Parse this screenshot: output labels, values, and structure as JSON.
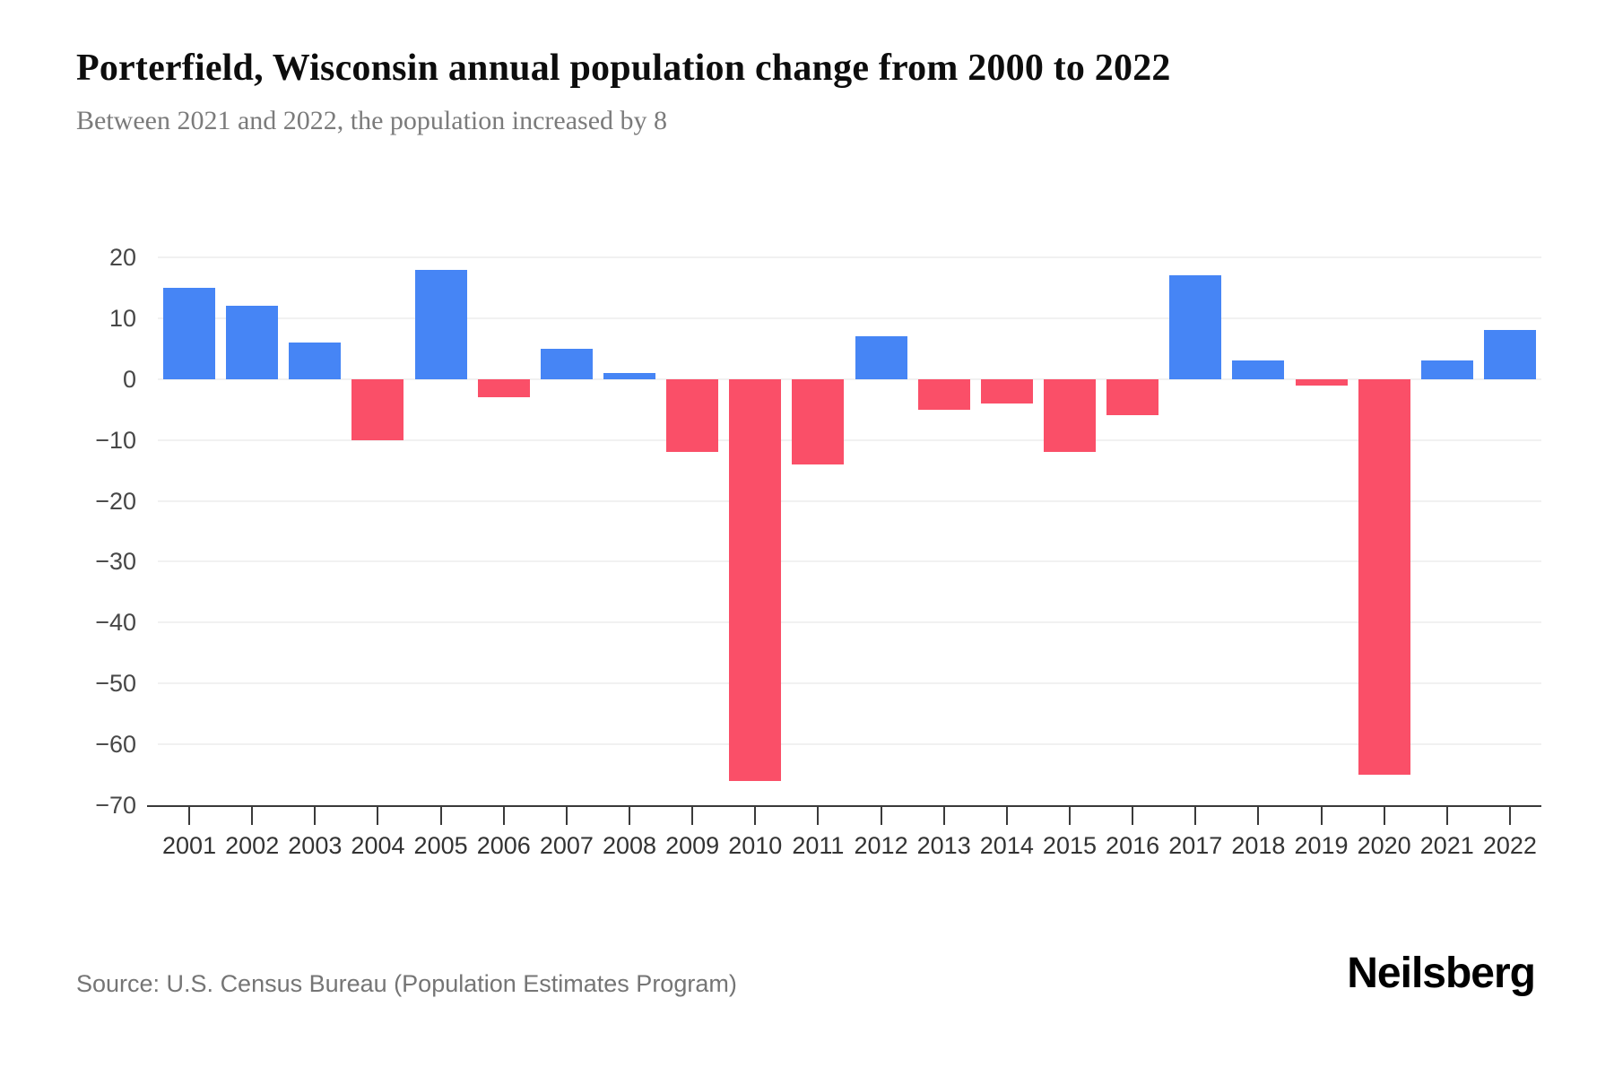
{
  "header": {
    "title": "Porterfield, Wisconsin annual population change from 2000 to 2022",
    "subtitle": "Between 2021 and 2022, the population increased by 8"
  },
  "footer": {
    "source": "Source: U.S. Census Bureau (Population Estimates Program)",
    "brand": "Neilsberg"
  },
  "chart_data": {
    "type": "bar",
    "title": "Porterfield, Wisconsin annual population change from 2000 to 2022",
    "categories": [
      "2001",
      "2002",
      "2003",
      "2004",
      "2005",
      "2006",
      "2007",
      "2008",
      "2009",
      "2010",
      "2011",
      "2012",
      "2013",
      "2014",
      "2015",
      "2016",
      "2017",
      "2018",
      "2019",
      "2020",
      "2021",
      "2022"
    ],
    "values": [
      15,
      12,
      6,
      -10,
      18,
      -3,
      5,
      1,
      -12,
      -66,
      -14,
      7,
      -5,
      -4,
      -12,
      -6,
      17,
      3,
      -1,
      -65,
      3,
      8
    ],
    "xlabel": "",
    "ylabel": "",
    "ylim": [
      -70,
      20
    ],
    "y_ticks": [
      20,
      10,
      0,
      -10,
      -20,
      -30,
      -40,
      -50,
      -60,
      -70
    ],
    "grid": true,
    "legend": "none",
    "colors": {
      "positive": "#4685F5",
      "negative": "#FA4F68",
      "gridline": "#F1F1F1",
      "axis": "#3A3A3A"
    }
  }
}
